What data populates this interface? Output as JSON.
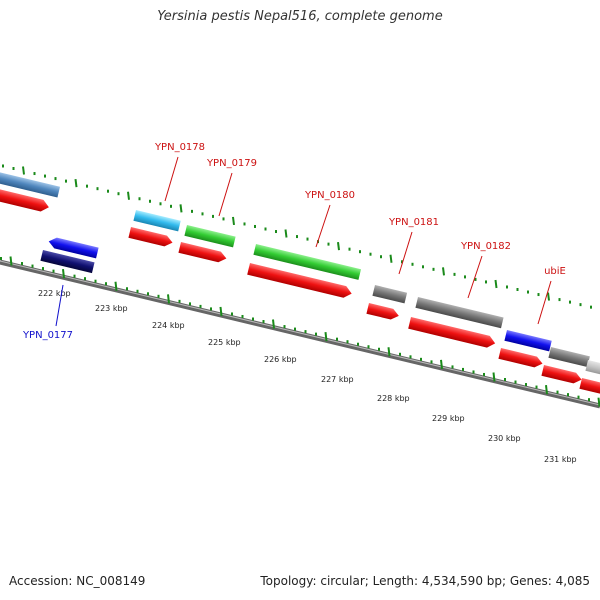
{
  "title": "Yersinia pestis Nepal516, complete genome",
  "accession_label": "Accession:",
  "accession": "NC_008149",
  "footer_stats": "Topology: circular; Length: 4,534,590 bp; Genes: 4,085",
  "colors": {
    "backbone": "#777777",
    "tick": "#1a8a1a",
    "red_cds": "#ee1111",
    "label_red": "#cc1111",
    "label_blue": "#1111cc"
  },
  "kbp_ticks": [
    "222 kbp",
    "223 kbp",
    "224 kbp",
    "225 kbp",
    "226 kbp",
    "227 kbp",
    "228 kbp",
    "229 kbp",
    "230 kbp",
    "231 kbp"
  ],
  "gene_labels": [
    {
      "text": "YPN_0177",
      "color": "blue"
    },
    {
      "text": "YPN_0178",
      "color": "red"
    },
    {
      "text": "YPN_0179",
      "color": "red"
    },
    {
      "text": "YPN_0180",
      "color": "red"
    },
    {
      "text": "YPN_0181",
      "color": "red"
    },
    {
      "text": "YPN_0182",
      "color": "red"
    },
    {
      "text": "ubiE",
      "color": "red"
    }
  ]
}
